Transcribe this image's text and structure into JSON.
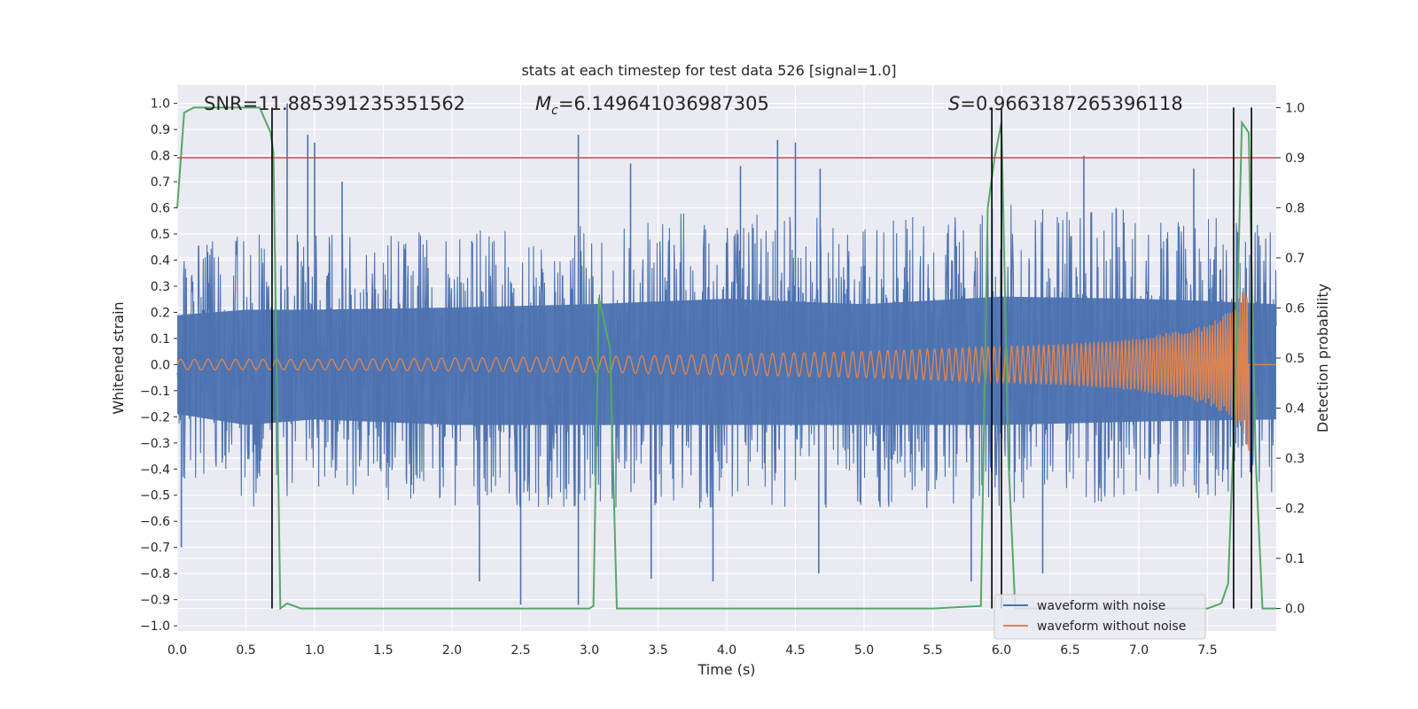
{
  "chart_data": {
    "type": "line",
    "title": "stats at each timestep for test data 526 [signal=1.0]",
    "xlabel": "Time (s)",
    "ylabel": "Whitened strain",
    "y2label": "Detection probability",
    "xlim": [
      0.0,
      8.0
    ],
    "ylim": [
      -1.02,
      1.07
    ],
    "y2lim": [
      -0.045,
      1.045
    ],
    "x_ticks": [
      0.0,
      0.5,
      1.0,
      1.5,
      2.0,
      2.5,
      3.0,
      3.5,
      4.0,
      4.5,
      5.0,
      5.5,
      6.0,
      6.5,
      7.0,
      7.5
    ],
    "x_tick_labels": [
      "0.0",
      "0.5",
      "1.0",
      "1.5",
      "2.0",
      "2.5",
      "3.0",
      "3.5",
      "4.0",
      "4.5",
      "5.0",
      "5.5",
      "6.0",
      "6.5",
      "7.0",
      "7.5"
    ],
    "y_ticks": [
      1.0,
      0.9,
      0.8,
      0.7,
      0.6,
      0.5,
      0.4,
      0.3,
      0.2,
      0.1,
      0.0,
      -0.1,
      -0.2,
      -0.3,
      -0.4,
      -0.5,
      -0.6,
      -0.7,
      -0.8,
      -0.9,
      -1.0
    ],
    "y_tick_labels": [
      "1.0",
      "0.9",
      "0.8",
      "0.7",
      "0.6",
      "0.5",
      "0.4",
      "0.3",
      "0.2",
      "0.1",
      "0.0",
      "−0.1",
      "−0.2",
      "−0.3",
      "−0.4",
      "−0.5",
      "−0.6",
      "−0.7",
      "−0.8",
      "−0.9",
      "−1.0"
    ],
    "y2_ticks": [
      1.0,
      0.9,
      0.8,
      0.7,
      0.6,
      0.5,
      0.4,
      0.3,
      0.2,
      0.1,
      0.0
    ],
    "y2_tick_labels": [
      "1.0",
      "0.9",
      "0.8",
      "0.7",
      "0.6",
      "0.5",
      "0.4",
      "0.3",
      "0.2",
      "0.1",
      "0.0"
    ],
    "grid": true,
    "legend_position": "lower-right",
    "annotations": {
      "snr": "SNR=11.885391235351562",
      "mc_symbol": "M",
      "mc_sub": "c",
      "mc_value": "=6.149641036987305",
      "s_symbol": "S",
      "s_value": "=0.9663187265396118"
    },
    "threshold": {
      "value": 0.9,
      "axis": "y2",
      "color": "#c44e52"
    },
    "vertical_markers": {
      "x": [
        0.69,
        5.93,
        6.0,
        7.69,
        7.82
      ],
      "y2_range": [
        0.0,
        1.0
      ],
      "color": "#000000"
    },
    "series": [
      {
        "name": "waveform with noise",
        "axis": "y",
        "color": "#4c72b0",
        "envelope_upper": [
          [
            0.0,
            0.45
          ],
          [
            0.5,
            0.5
          ],
          [
            1.0,
            0.5
          ],
          [
            2.0,
            0.52
          ],
          [
            3.0,
            0.55
          ],
          [
            4.0,
            0.6
          ],
          [
            5.0,
            0.55
          ],
          [
            6.0,
            0.62
          ],
          [
            7.0,
            0.6
          ],
          [
            7.5,
            0.58
          ],
          [
            8.0,
            0.55
          ]
        ],
        "envelope_lower": [
          [
            0.0,
            -0.45
          ],
          [
            0.5,
            -0.55
          ],
          [
            1.0,
            -0.5
          ],
          [
            2.0,
            -0.55
          ],
          [
            3.0,
            -0.55
          ],
          [
            4.0,
            -0.55
          ],
          [
            5.0,
            -0.55
          ],
          [
            6.0,
            -0.55
          ],
          [
            7.0,
            -0.52
          ],
          [
            8.0,
            -0.5
          ]
        ],
        "peaks": [
          [
            0.03,
            -0.7
          ],
          [
            0.8,
            1.0
          ],
          [
            0.95,
            0.88
          ],
          [
            1.0,
            0.85
          ],
          [
            1.2,
            0.7
          ],
          [
            2.2,
            -0.83
          ],
          [
            2.5,
            -0.92
          ],
          [
            2.92,
            0.88
          ],
          [
            2.92,
            -0.92
          ],
          [
            3.45,
            -0.82
          ],
          [
            4.37,
            0.86
          ],
          [
            4.5,
            0.85
          ],
          [
            4.68,
            0.75
          ],
          [
            5.78,
            -0.83
          ],
          [
            6.0,
            0.82
          ],
          [
            3.3,
            0.77
          ],
          [
            4.1,
            0.76
          ],
          [
            6.6,
            0.8
          ],
          [
            7.4,
            0.75
          ],
          [
            3.9,
            -0.83
          ],
          [
            4.67,
            -0.8
          ],
          [
            6.3,
            -0.8
          ]
        ]
      },
      {
        "name": "waveform without noise",
        "axis": "y",
        "color": "#dd8452",
        "amplitude": [
          [
            0.0,
            0.02
          ],
          [
            1.0,
            0.02
          ],
          [
            2.0,
            0.025
          ],
          [
            3.0,
            0.03
          ],
          [
            4.0,
            0.04
          ],
          [
            5.0,
            0.05
          ],
          [
            6.0,
            0.07
          ],
          [
            6.5,
            0.08
          ],
          [
            7.0,
            0.1
          ],
          [
            7.5,
            0.15
          ],
          [
            7.7,
            0.22
          ],
          [
            7.8,
            0.33
          ],
          [
            7.82,
            0.0
          ],
          [
            8.0,
            0.0
          ]
        ],
        "end_value": -0.33
      },
      {
        "name": "detection probability",
        "axis": "y2",
        "color": "#55a868",
        "x": [
          0.0,
          0.05,
          0.12,
          0.2,
          0.3,
          0.4,
          0.5,
          0.6,
          0.68,
          0.7,
          0.75,
          0.8,
          0.9,
          1.0,
          1.5,
          2.0,
          2.5,
          3.0,
          3.03,
          3.07,
          3.15,
          3.2,
          3.5,
          4.0,
          5.0,
          5.5,
          5.85,
          5.9,
          5.95,
          6.0,
          6.05,
          6.1,
          6.5,
          7.0,
          7.5,
          7.6,
          7.65,
          7.7,
          7.75,
          7.8,
          7.85,
          7.9,
          8.0
        ],
        "y": [
          0.8,
          0.99,
          1.0,
          1.0,
          1.0,
          1.0,
          1.0,
          1.0,
          0.95,
          0.91,
          0.0,
          0.01,
          0.0,
          0.0,
          0.0,
          0.0,
          0.0,
          0.0,
          0.005,
          0.62,
          0.52,
          0.0,
          0.0,
          0.0,
          0.0,
          0.0,
          0.005,
          0.8,
          0.9,
          0.97,
          0.3,
          0.0,
          0.0,
          0.0,
          0.0,
          0.01,
          0.05,
          0.42,
          0.97,
          0.95,
          0.3,
          0.0,
          0.0
        ]
      }
    ]
  }
}
